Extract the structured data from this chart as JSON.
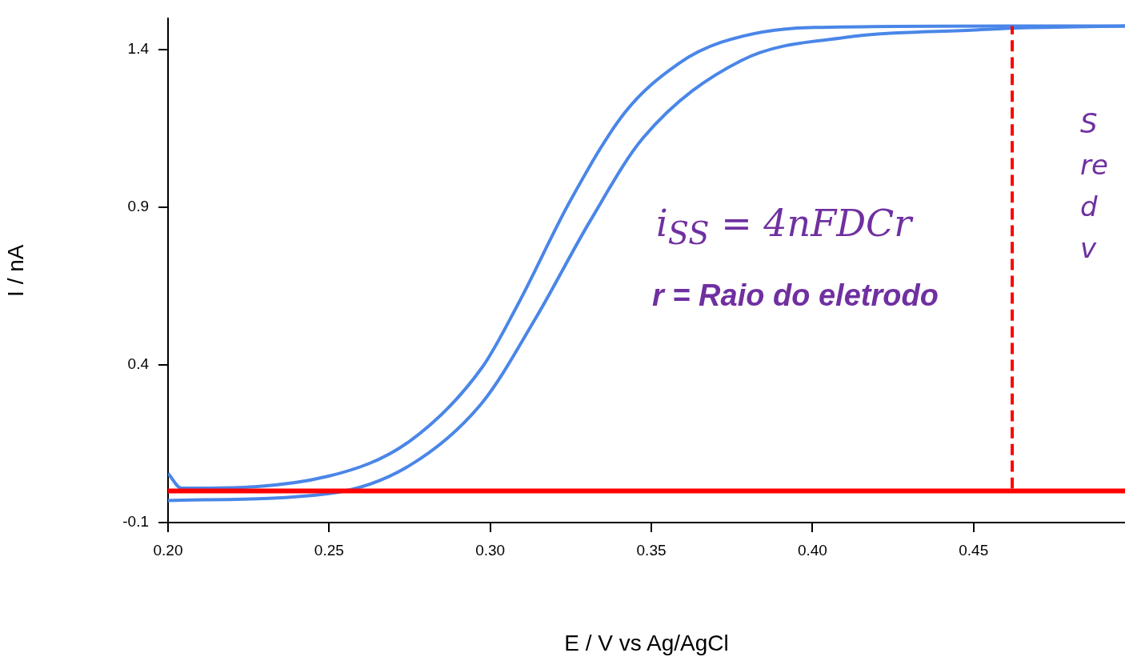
{
  "chart_data": {
    "type": "line",
    "xlabel": "E / V vs Ag/AgCl",
    "ylabel": "I / nA",
    "xlim": [
      0.2,
      0.497
    ],
    "ylim": [
      -0.1,
      1.497
    ],
    "xticks": [
      {
        "value": 0.2,
        "label": "0.20"
      },
      {
        "value": 0.25,
        "label": "0.25"
      },
      {
        "value": 0.3,
        "label": "0.30"
      },
      {
        "value": 0.35,
        "label": "0.35"
      },
      {
        "value": 0.4,
        "label": "0.40"
      },
      {
        "value": 0.45,
        "label": "0.45"
      }
    ],
    "yticks": [
      -0.1,
      0.4,
      0.9,
      1.4
    ],
    "grid": false,
    "legend": false,
    "marker": "none",
    "series": [
      {
        "color": "#4a86e8",
        "x": [
          0.2,
          0.2042,
          0.2498,
          0.275,
          0.2975,
          0.3085,
          0.325,
          0.3418,
          0.3585,
          0.3716,
          0.399,
          0.462,
          0.497
        ],
        "values": [
          0.056,
          0.009,
          0.047,
          0.158,
          0.392,
          0.59,
          0.923,
          1.2,
          1.355,
          1.422,
          1.469,
          1.474,
          1.474
        ]
      },
      {
        "color": "#4a86e8",
        "x": [
          0.2,
          0.25,
          0.275,
          0.2975,
          0.314,
          0.331,
          0.3475,
          0.378,
          0.4097,
          0.4515,
          0.462,
          0.497
        ],
        "values": [
          -0.03,
          -0.008,
          0.081,
          0.28,
          0.546,
          0.856,
          1.12,
          1.365,
          1.437,
          1.462,
          1.467,
          1.474
        ]
      },
      {
        "color": "#ff0000",
        "line_style": "dashed",
        "x": [
          0.462,
          0.462
        ],
        "values": [
          0,
          1.474
        ]
      }
    ],
    "ref_lines": [
      {
        "axis": "y",
        "value": 0,
        "color": "#ff0000"
      }
    ],
    "annotations": [
      "i$_{SS}$ = 4nFDCr",
      "r = Raio do eletrodo",
      "S\nre\nd\nv"
    ]
  }
}
